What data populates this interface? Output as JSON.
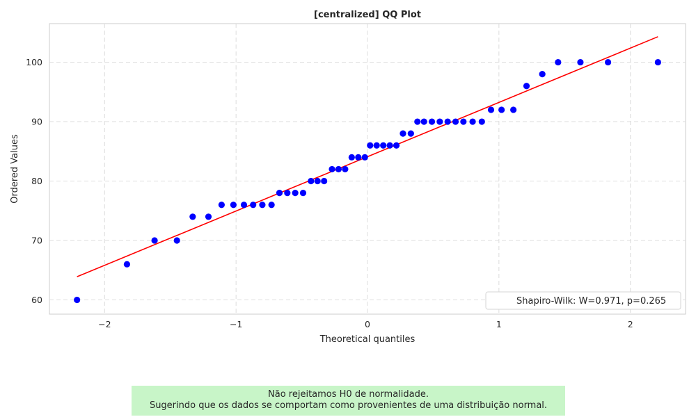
{
  "chart_data": {
    "type": "scatter",
    "title": "[centralized] QQ Plot",
    "xlabel": "Theoretical quantiles",
    "ylabel": "Ordered Values",
    "xlim": [
      -2.42,
      2.42
    ],
    "ylim": [
      57.6,
      106.5
    ],
    "xticks": [
      -2,
      -1,
      0,
      1,
      2
    ],
    "xtick_labels": [
      "−2",
      "−1",
      "0",
      "1",
      "2"
    ],
    "yticks": [
      60,
      70,
      80,
      90,
      100
    ],
    "ytick_labels": [
      "60",
      "70",
      "80",
      "90",
      "100"
    ],
    "grid": true,
    "legend_position": "bottom-right",
    "legend_label": "Shapiro-Wilk: W=0.971, p=0.265",
    "marker_color": "#0000ff",
    "line_color": "#ff0000",
    "fit_line": {
      "x": [
        -2.21,
        2.21
      ],
      "y": [
        63.9,
        104.3
      ]
    },
    "points": [
      {
        "x": -2.21,
        "y": 60
      },
      {
        "x": -1.83,
        "y": 66
      },
      {
        "x": -1.62,
        "y": 70
      },
      {
        "x": -1.45,
        "y": 70
      },
      {
        "x": -1.33,
        "y": 74
      },
      {
        "x": -1.21,
        "y": 74
      },
      {
        "x": -1.11,
        "y": 76
      },
      {
        "x": -1.02,
        "y": 76
      },
      {
        "x": -0.94,
        "y": 76
      },
      {
        "x": -0.87,
        "y": 76
      },
      {
        "x": -0.8,
        "y": 76
      },
      {
        "x": -0.73,
        "y": 76
      },
      {
        "x": -0.67,
        "y": 78
      },
      {
        "x": -0.61,
        "y": 78
      },
      {
        "x": -0.55,
        "y": 78
      },
      {
        "x": -0.49,
        "y": 78
      },
      {
        "x": -0.43,
        "y": 80
      },
      {
        "x": -0.38,
        "y": 80
      },
      {
        "x": -0.33,
        "y": 80
      },
      {
        "x": -0.27,
        "y": 82
      },
      {
        "x": -0.22,
        "y": 82
      },
      {
        "x": -0.17,
        "y": 82
      },
      {
        "x": -0.12,
        "y": 84
      },
      {
        "x": -0.07,
        "y": 84
      },
      {
        "x": -0.02,
        "y": 84
      },
      {
        "x": 0.02,
        "y": 86
      },
      {
        "x": 0.07,
        "y": 86
      },
      {
        "x": 0.12,
        "y": 86
      },
      {
        "x": 0.17,
        "y": 86
      },
      {
        "x": 0.22,
        "y": 86
      },
      {
        "x": 0.27,
        "y": 88
      },
      {
        "x": 0.33,
        "y": 88
      },
      {
        "x": 0.38,
        "y": 90
      },
      {
        "x": 0.43,
        "y": 90
      },
      {
        "x": 0.49,
        "y": 90
      },
      {
        "x": 0.55,
        "y": 90
      },
      {
        "x": 0.61,
        "y": 90
      },
      {
        "x": 0.67,
        "y": 90
      },
      {
        "x": 0.73,
        "y": 90
      },
      {
        "x": 0.8,
        "y": 90
      },
      {
        "x": 0.87,
        "y": 90
      },
      {
        "x": 0.94,
        "y": 92
      },
      {
        "x": 1.02,
        "y": 92
      },
      {
        "x": 1.11,
        "y": 92
      },
      {
        "x": 1.21,
        "y": 96
      },
      {
        "x": 1.33,
        "y": 98
      },
      {
        "x": 1.45,
        "y": 100
      },
      {
        "x": 1.62,
        "y": 100
      },
      {
        "x": 1.83,
        "y": 100
      },
      {
        "x": 2.21,
        "y": 100
      }
    ]
  },
  "verdict": {
    "line1": "Não rejeitamos H0 de normalidade.",
    "line2": "Sugerindo que os dados se comportam como provenientes de uma distribuição normal.",
    "background": "#c8f5c8"
  }
}
